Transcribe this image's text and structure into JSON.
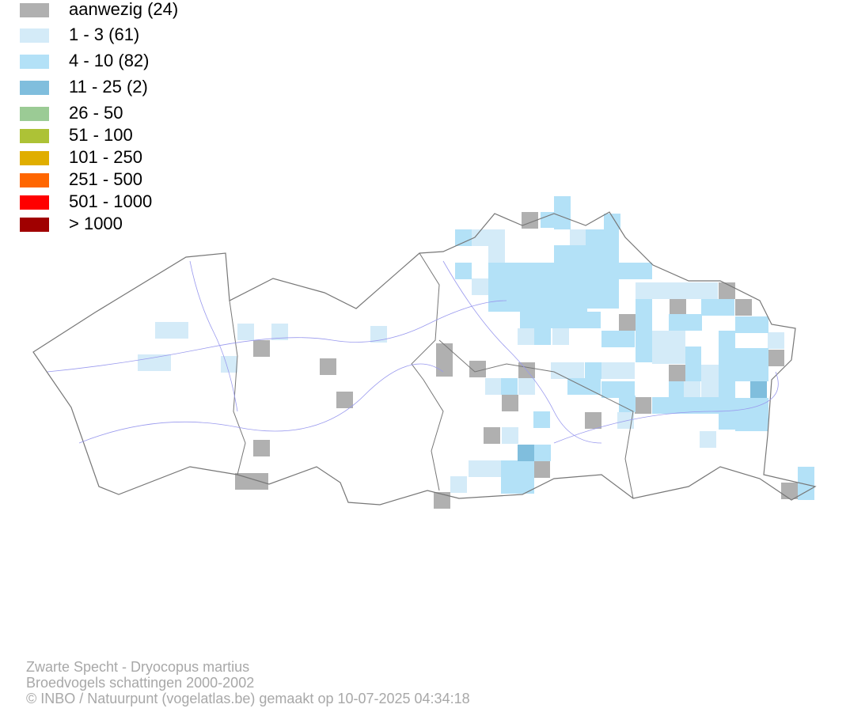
{
  "legend": {
    "items": [
      {
        "label": "aanwezig (24)",
        "color": "#b0b0b0"
      },
      {
        "label": "1 - 3 (61)",
        "color": "#d4ebf8"
      },
      {
        "label": "4 - 10 (82)",
        "color": "#b3e1f7"
      },
      {
        "label": "11 - 25 (2)",
        "color": "#80bedd"
      },
      {
        "label": "26 - 50",
        "color": "#9bcb95"
      },
      {
        "label": "51 - 100",
        "color": "#adc236"
      },
      {
        "label": "101 - 250",
        "color": "#e0ae00"
      },
      {
        "label": "251 - 500",
        "color": "#ff6600"
      },
      {
        "label": "501 - 1000",
        "color": "#ff0000"
      },
      {
        "label": "> 1000",
        "color": "#a00000"
      }
    ]
  },
  "footer": {
    "lines": [
      "Zwarte Specht - Dryocopus martius",
      "Broedvogels schattingen 2000-2002",
      "© INBO / Natuurpunt (vogelatlas.be) gemaakt op 10-07-2025 04:34:18"
    ]
  }
}
